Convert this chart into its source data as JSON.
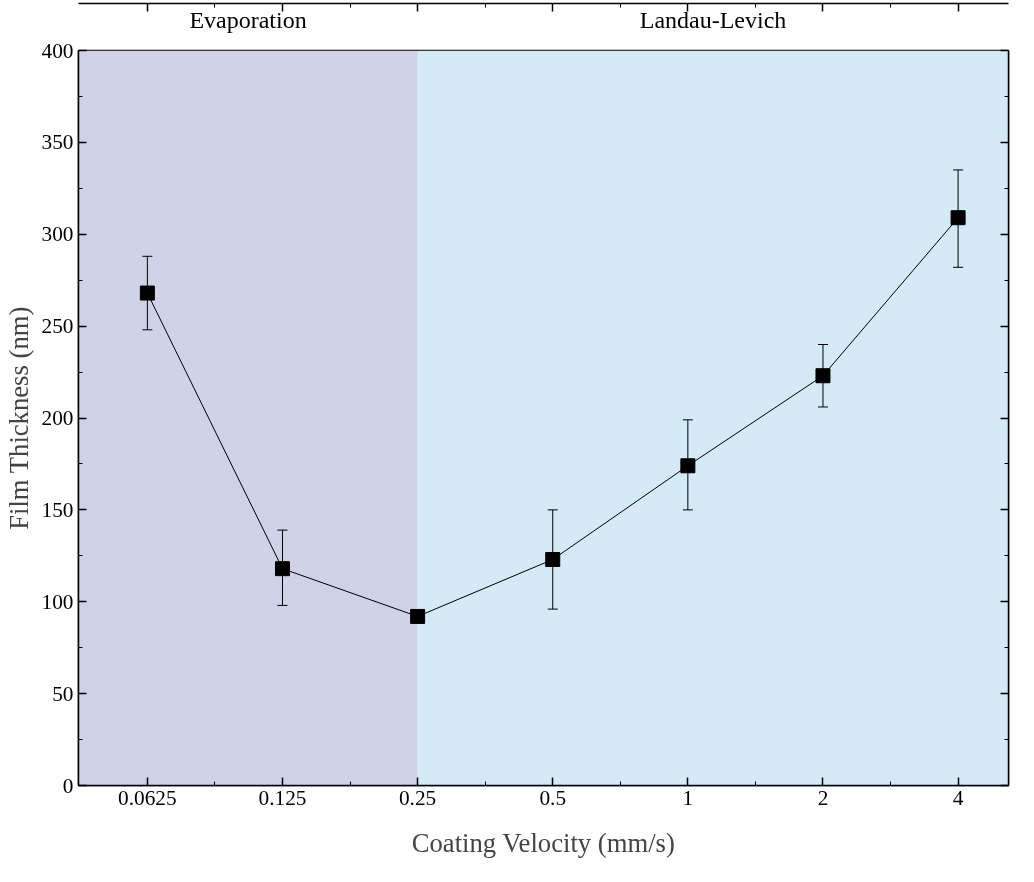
{
  "chart_data": {
    "type": "line",
    "xlabel": "Coating Velocity (mm/s)",
    "ylabel": "Film Thickness (nm)",
    "x": [
      0.0625,
      0.125,
      0.25,
      0.5,
      1,
      2,
      4
    ],
    "series": [
      {
        "color": "#000000",
        "values": [
          268,
          118,
          92,
          123,
          174,
          223,
          309
        ],
        "errors": [
          [
            248,
            288
          ],
          [
            98,
            139
          ],
          null,
          [
            96,
            150
          ],
          [
            150,
            199
          ],
          [
            206,
            240
          ],
          [
            282,
            335
          ]
        ]
      }
    ],
    "log": "x",
    "marker": "square",
    "line_style": "solid",
    "grid": false,
    "xlim": [
      0.0439,
      5.18
    ],
    "xticks": [
      0.0625,
      0.125,
      0.25,
      0.5,
      1,
      2,
      4
    ],
    "ylim": [
      0,
      400
    ],
    "yticks": [
      0,
      50,
      100,
      150,
      200,
      250,
      300,
      350,
      400
    ],
    "bands": [
      {
        "axis": "x",
        "from": 0.0439,
        "to": 0.25,
        "label": "Evaporation",
        "color": "#d0d3e8"
      },
      {
        "axis": "x",
        "from": 0.25,
        "to": 5.18,
        "label": "Landau-Levich",
        "color": "#d4eaf7"
      }
    ]
  }
}
